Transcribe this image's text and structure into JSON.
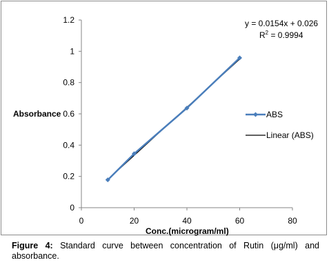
{
  "chart_data": {
    "type": "scatter",
    "xlabel": "Conc.(microgram/ml)",
    "ylabel": "Absorbance",
    "xlim": [
      0,
      80
    ],
    "ylim": [
      0,
      1.2
    ],
    "xticks": [
      0,
      20,
      40,
      60,
      80
    ],
    "yticks": [
      0,
      0.2,
      0.4,
      0.6,
      0.8,
      1,
      1.2
    ],
    "ytick_labels": [
      "0",
      "0.2",
      "0.4",
      "0.6",
      "0.8",
      "1",
      "1.2"
    ],
    "grid": false,
    "series": [
      {
        "name": "ABS",
        "x": [
          10,
          20,
          40,
          60
        ],
        "y": [
          0.178,
          0.345,
          0.637,
          0.958
        ],
        "color": "#4a7ebb"
      }
    ],
    "trendline": {
      "name": "Linear (ABS)",
      "slope": 0.0154,
      "intercept": 0.026,
      "color": "#000000",
      "equation": "y = 0.0154x + 0.026",
      "r2_label": "R",
      "r2_exp": "2",
      "r2_value": " = 0.9994"
    },
    "legend_position": "right"
  },
  "caption": {
    "label": "Figure 4:",
    "text": " Standard curve between concentration of Rutin (μg/ml) and absorbance."
  }
}
